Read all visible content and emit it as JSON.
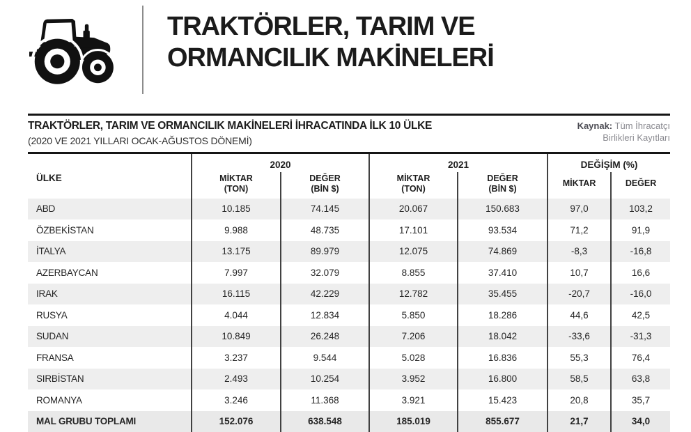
{
  "masthead": {
    "title_line1": "TRAKTÖRLER, TARIM VE",
    "title_line2": "ORMANCILIK MAKİNELERİ"
  },
  "section": {
    "title": "TRAKTÖRLER, TARIM VE ORMANCILIK MAKİNELERİ İHRACATINDA İLK 10 ÜLKE",
    "subtitle": "(2020 VE 2021 YILLARI OCAK-AĞUSTOS DÖNEMİ)",
    "source": {
      "label": "Kaynak:",
      "line1": "Tüm İhracatçı",
      "line2": "Birlikleri Kayıtları"
    }
  },
  "table": {
    "country_header": "ÜLKE",
    "groups": [
      {
        "label": "2020",
        "cols": [
          {
            "l1": "MİKTAR",
            "l2": "(TON)"
          },
          {
            "l1": "DEĞER",
            "l2": "(BİN $)"
          }
        ]
      },
      {
        "label": "2021",
        "cols": [
          {
            "l1": "MİKTAR",
            "l2": "(TON)"
          },
          {
            "l1": "DEĞER",
            "l2": "(BİN $)"
          }
        ]
      },
      {
        "label": "DEĞİŞİM (%)",
        "cols": [
          {
            "l1": "MİKTAR"
          },
          {
            "l1": "DEĞER"
          }
        ]
      }
    ],
    "rows": [
      {
        "country": "ABD",
        "values": [
          "10.185",
          "74.145",
          "20.067",
          "150.683",
          "97,0",
          "103,2"
        ]
      },
      {
        "country": "ÖZBEKİSTAN",
        "values": [
          "9.988",
          "48.735",
          "17.101",
          "93.534",
          "71,2",
          "91,9"
        ]
      },
      {
        "country": "İTALYA",
        "values": [
          "13.175",
          "89.979",
          "12.075",
          "74.869",
          "-8,3",
          "-16,8"
        ]
      },
      {
        "country": "AZERBAYCAN",
        "values": [
          "7.997",
          "32.079",
          "8.855",
          "37.410",
          "10,7",
          "16,6"
        ]
      },
      {
        "country": "IRAK",
        "values": [
          "16.115",
          "42.229",
          "12.782",
          "35.455",
          "-20,7",
          "-16,0"
        ]
      },
      {
        "country": "RUSYA",
        "values": [
          "4.044",
          "12.834",
          "5.850",
          "18.286",
          "44,6",
          "42,5"
        ]
      },
      {
        "country": "SUDAN",
        "values": [
          "10.849",
          "26.248",
          "7.206",
          "18.042",
          "-33,6",
          "-31,3"
        ]
      },
      {
        "country": "FRANSA",
        "values": [
          "3.237",
          "9.544",
          "5.028",
          "16.836",
          "55,3",
          "76,4"
        ]
      },
      {
        "country": "SIRBİSTAN",
        "values": [
          "2.493",
          "10.254",
          "3.952",
          "16.800",
          "58,5",
          "63,8"
        ]
      },
      {
        "country": "ROMANYA",
        "values": [
          "3.246",
          "11.368",
          "3.921",
          "15.423",
          "20,8",
          "35,7"
        ]
      }
    ],
    "total": {
      "country": "MAL GRUBU TOPLAMI",
      "values": [
        "152.076",
        "638.548",
        "185.019",
        "855.677",
        "21,7",
        "34,0"
      ]
    }
  },
  "colors": {
    "title_black": "#1b1b1b",
    "rule_black": "#151515",
    "table_line": "#414141",
    "row_shade": "#eeeeee",
    "source_gray": "#8a8a90"
  }
}
